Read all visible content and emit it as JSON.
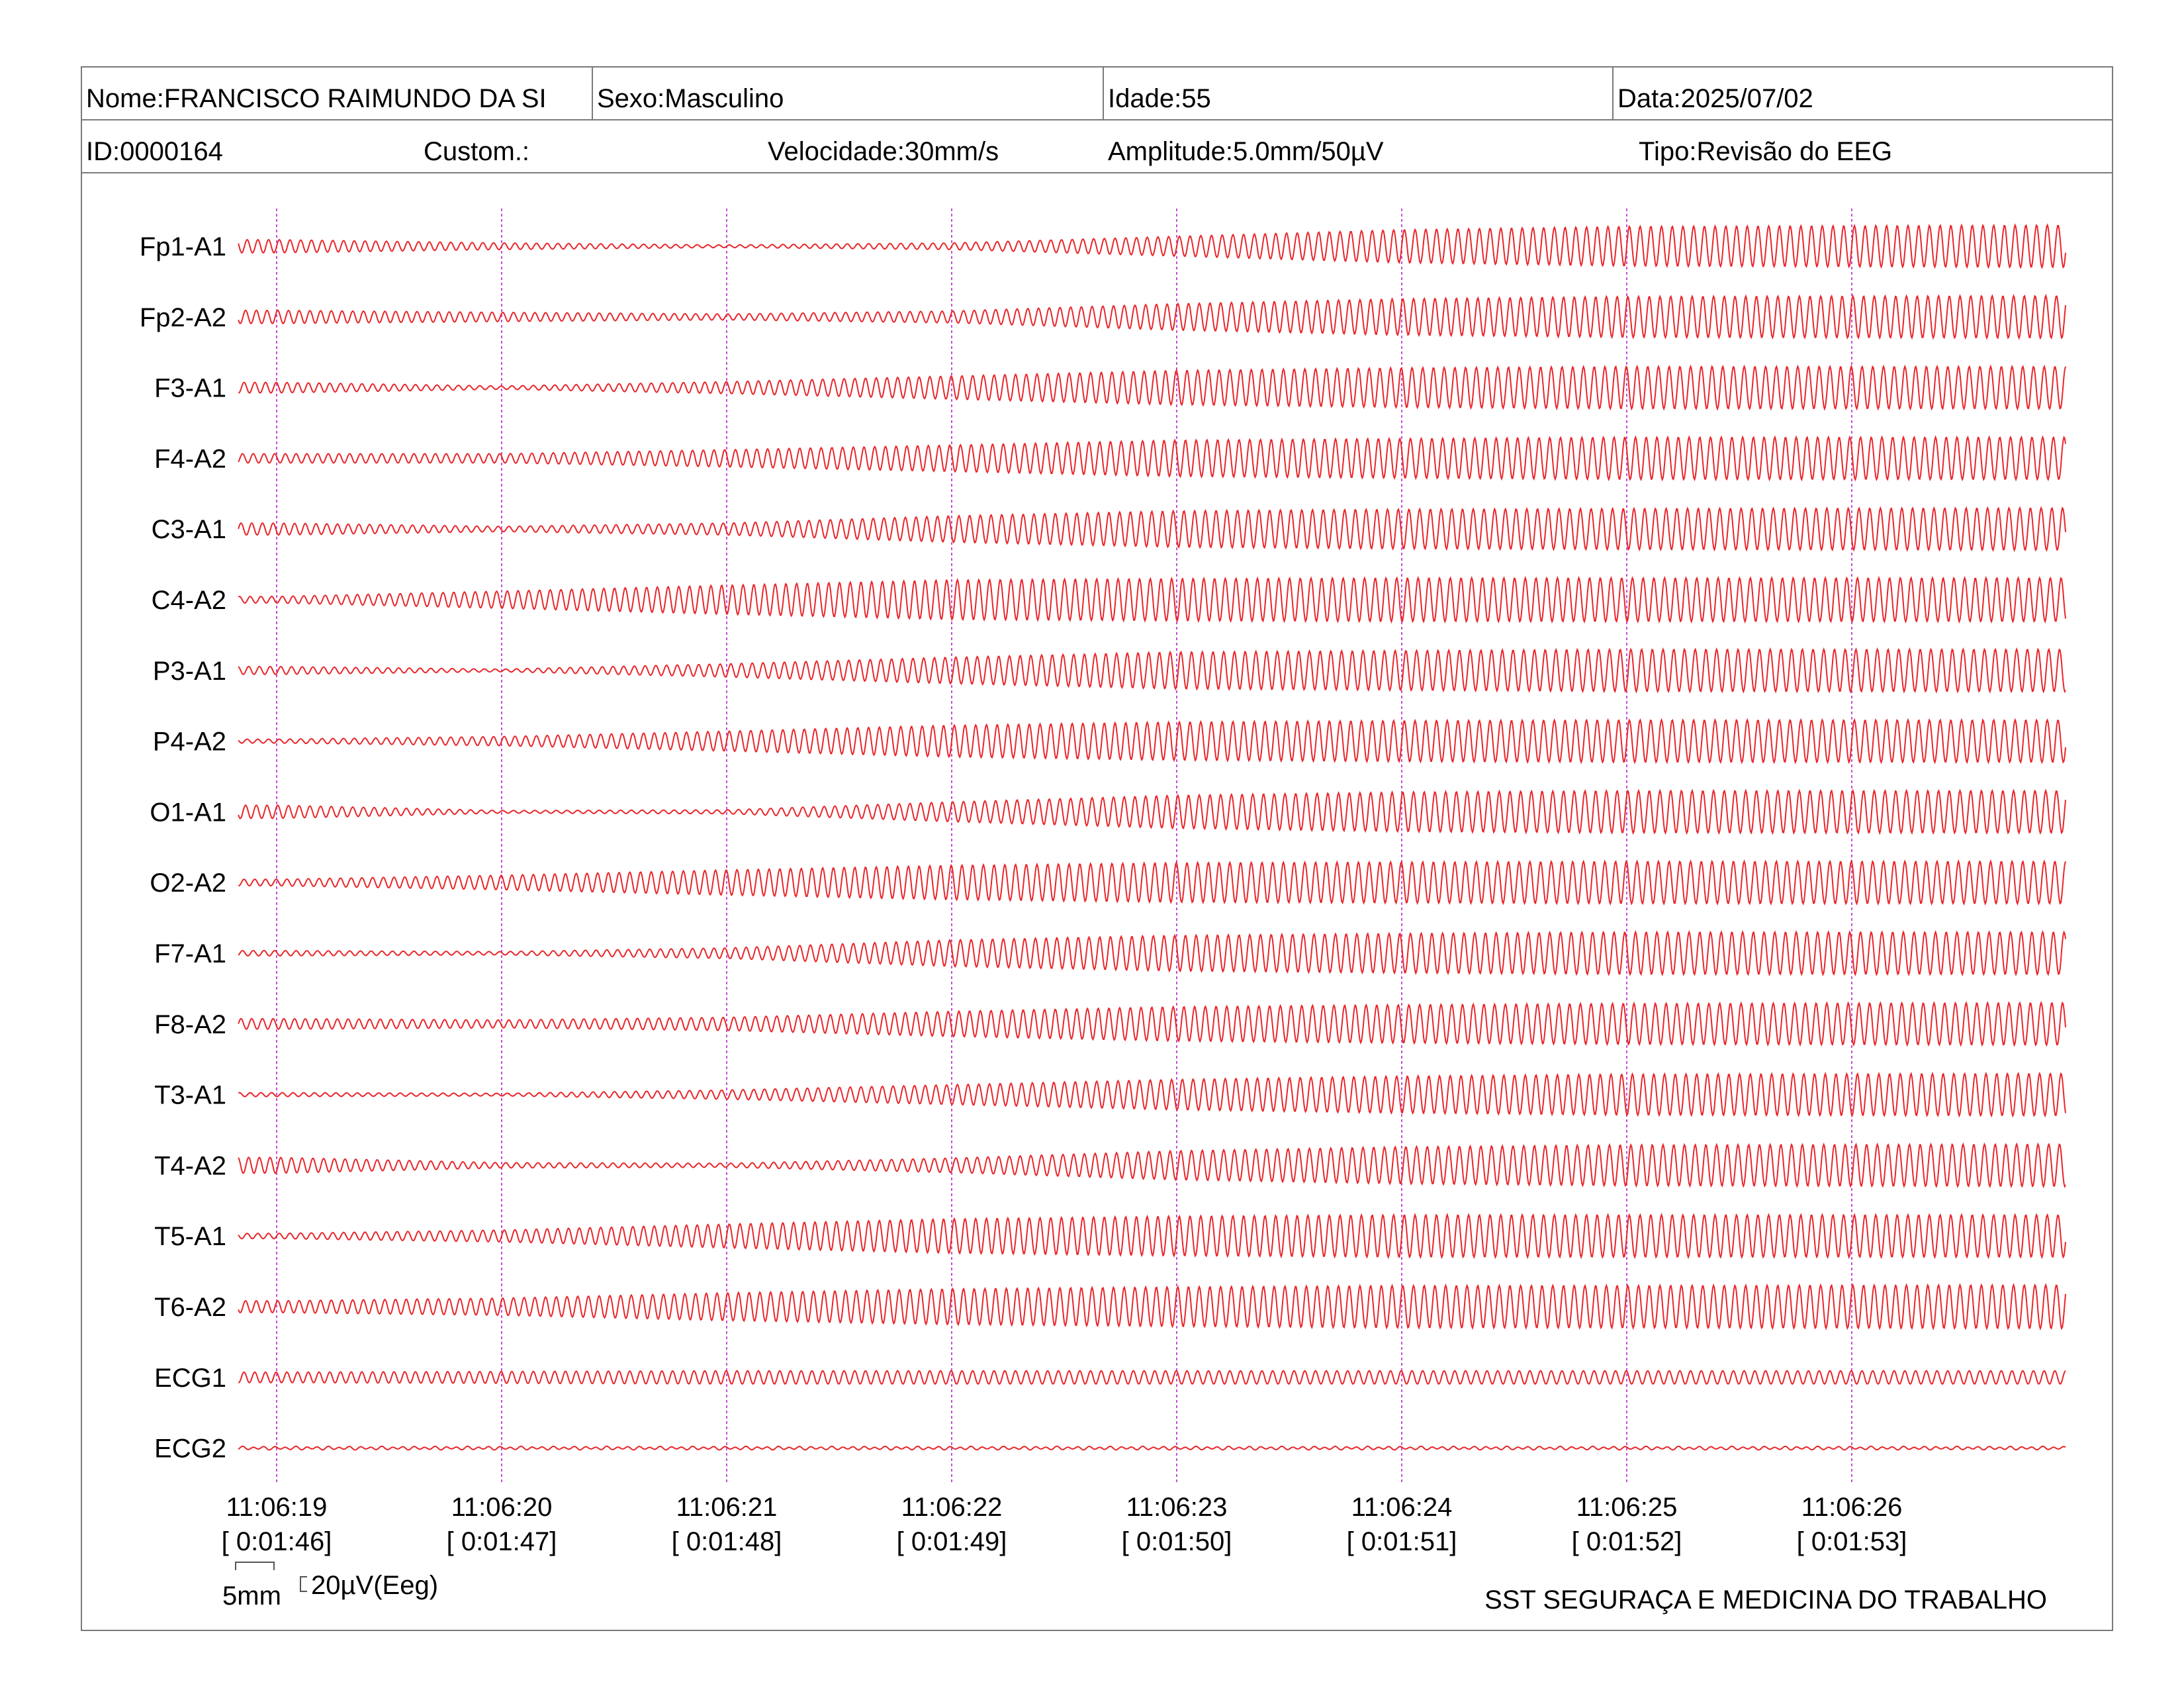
{
  "header": {
    "nome": "Nome:FRANCISCO RAIMUNDO DA SI",
    "sexo": "Sexo:Masculino",
    "idade": "Idade:55",
    "data": "Data:2025/07/02",
    "id": "ID:0000164",
    "custom": "Custom.:",
    "velocidade": "Velocidade:30mm/s",
    "amplitude": "Amplitude:5.0mm/50µV",
    "tipo": "Tipo:Revisão do EEG"
  },
  "footer": {
    "scale_time": "5mm",
    "scale_amp": "20µV(Eeg)",
    "clinic": "SST SEGURAÇA E MEDICINA DO TRABALHO"
  },
  "colors": {
    "trace": "#e8262a",
    "marker": "#c64bd8",
    "border": "#7a7a7a"
  },
  "chart_data": {
    "type": "line",
    "x_unit": "s",
    "time_labels": [
      "11:06:19",
      "11:06:20",
      "11:06:21",
      "11:06:22",
      "11:06:23",
      "11:06:24",
      "11:06:25",
      "11:06:26"
    ],
    "elapsed_labels": [
      "[ 0:01:46]",
      "[ 0:01:47]",
      "[ 0:01:48]",
      "[ 0:01:49]",
      "[ 0:01:50]",
      "[ 0:01:51]",
      "[ 0:01:52]",
      "[ 0:01:53]"
    ],
    "x_range": [
      -0.17,
      7.95
    ],
    "dominant_frequency_hz": 21,
    "amplitude_unit": "µV",
    "series": [
      {
        "name": "Fp1-A1",
        "amplitude_envelope": {
          "t": [
            0,
            1,
            2,
            3,
            4,
            5,
            6,
            7.9
          ],
          "values": [
            20,
            10,
            4,
            10,
            30,
            50,
            60,
            64
          ]
        }
      },
      {
        "name": "Fp2-A2",
        "amplitude_envelope": {
          "t": [
            0,
            1,
            2,
            3,
            4,
            5,
            6,
            7.9
          ],
          "values": [
            20,
            14,
            9,
            18,
            40,
            55,
            62,
            64
          ]
        }
      },
      {
        "name": "F3-A1",
        "amplitude_envelope": {
          "t": [
            0,
            1,
            2,
            3,
            4,
            5,
            6,
            7.9
          ],
          "values": [
            16,
            5,
            18,
            35,
            52,
            60,
            64,
            64
          ]
        }
      },
      {
        "name": "F4-A2",
        "amplitude_envelope": {
          "t": [
            0,
            1,
            2,
            3,
            4,
            5,
            6,
            7.9
          ],
          "values": [
            14,
            14,
            26,
            40,
            55,
            60,
            64,
            64
          ]
        }
      },
      {
        "name": "C3-A1",
        "amplitude_envelope": {
          "t": [
            0,
            1,
            2,
            3,
            4,
            5,
            6,
            7.9
          ],
          "values": [
            18,
            8,
            18,
            40,
            55,
            60,
            62,
            64
          ]
        }
      },
      {
        "name": "C4-A2",
        "amplitude_envelope": {
          "t": [
            0,
            1,
            2,
            3,
            4,
            5,
            6,
            7.9
          ],
          "values": [
            10,
            26,
            44,
            60,
            64,
            66,
            66,
            66
          ]
        }
      },
      {
        "name": "P3-A1",
        "amplitude_envelope": {
          "t": [
            0,
            1,
            2,
            3,
            4,
            5,
            6,
            7.9
          ],
          "values": [
            12,
            4,
            20,
            40,
            56,
            60,
            64,
            64
          ]
        }
      },
      {
        "name": "P4-A2",
        "amplitude_envelope": {
          "t": [
            0,
            1,
            2,
            3,
            4,
            5,
            6,
            7.9
          ],
          "values": [
            6,
            14,
            30,
            48,
            58,
            62,
            64,
            64
          ]
        }
      },
      {
        "name": "O1-A1",
        "amplitude_envelope": {
          "t": [
            0,
            1,
            2,
            3,
            4,
            5,
            6,
            7.9
          ],
          "values": [
            20,
            4,
            6,
            30,
            50,
            60,
            64,
            64
          ]
        }
      },
      {
        "name": "O2-A2",
        "amplitude_envelope": {
          "t": [
            0,
            1,
            2,
            3,
            4,
            5,
            6,
            7.9
          ],
          "values": [
            10,
            22,
            38,
            52,
            60,
            62,
            64,
            64
          ]
        }
      },
      {
        "name": "F7-A1",
        "amplitude_envelope": {
          "t": [
            0,
            1,
            2,
            3,
            4,
            5,
            6,
            7.9
          ],
          "values": [
            8,
            5,
            16,
            40,
            54,
            60,
            64,
            64
          ]
        }
      },
      {
        "name": "F8-A2",
        "amplitude_envelope": {
          "t": [
            0,
            1,
            2,
            3,
            4,
            5,
            6,
            7.9
          ],
          "values": [
            16,
            12,
            20,
            38,
            52,
            58,
            62,
            64
          ]
        }
      },
      {
        "name": "T3-A1",
        "amplitude_envelope": {
          "t": [
            0,
            1,
            2,
            3,
            4,
            5,
            6,
            7.9
          ],
          "values": [
            6,
            4,
            14,
            30,
            46,
            56,
            62,
            64
          ]
        }
      },
      {
        "name": "T4-A2",
        "amplitude_envelope": {
          "t": [
            0,
            1,
            2,
            3,
            4,
            5,
            6,
            7.9
          ],
          "values": [
            24,
            8,
            6,
            22,
            44,
            56,
            62,
            64
          ]
        }
      },
      {
        "name": "T5-A1",
        "amplitude_envelope": {
          "t": [
            0,
            1,
            2,
            3,
            4,
            5,
            6,
            7.9
          ],
          "values": [
            8,
            18,
            36,
            52,
            60,
            64,
            64,
            64
          ]
        }
      },
      {
        "name": "T6-A2",
        "amplitude_envelope": {
          "t": [
            0,
            1,
            2,
            3,
            4,
            5,
            6,
            7.9
          ],
          "values": [
            18,
            26,
            42,
            54,
            60,
            64,
            64,
            66
          ]
        }
      },
      {
        "name": "ECG1",
        "amplitude_envelope": {
          "t": [
            0,
            1,
            2,
            3,
            4,
            5,
            6,
            7.9
          ],
          "values": [
            16,
            18,
            20,
            20,
            20,
            20,
            20,
            20
          ]
        }
      },
      {
        "name": "ECG2",
        "amplitude_envelope": {
          "t": [
            0,
            1,
            2,
            3,
            4,
            5,
            6,
            7.9
          ],
          "values": [
            4,
            4,
            4,
            4,
            4,
            4,
            4,
            4
          ]
        }
      }
    ]
  }
}
